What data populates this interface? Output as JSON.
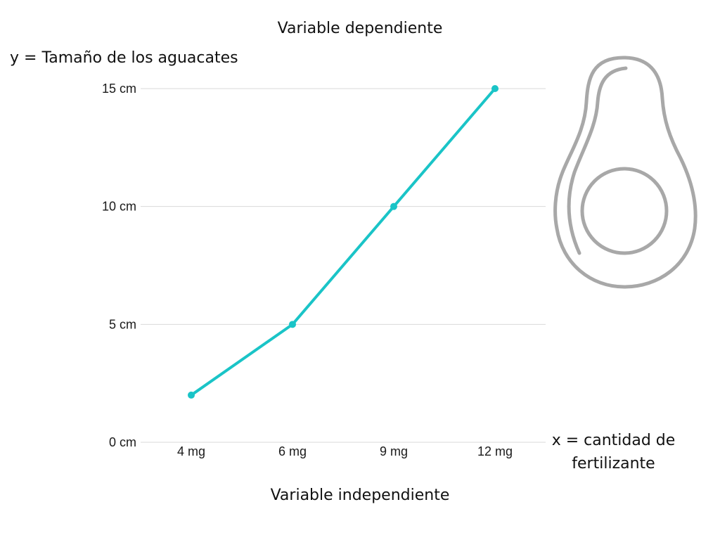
{
  "headings": {
    "dependent": "Variable dependiente",
    "independent": "Variable independiente"
  },
  "chart_data": {
    "type": "line",
    "title": "",
    "ylabel": "y = Tamaño de los aguacates",
    "xlabel": "x = cantidad de fertilizante",
    "categories": [
      "4 mg",
      "6 mg",
      "9 mg",
      "12 mg"
    ],
    "y_ticks": [
      "0 cm",
      "5 cm",
      "10 cm",
      "15 cm"
    ],
    "y_tick_values": [
      0,
      5,
      10,
      15
    ],
    "ylim": [
      0,
      15
    ],
    "grid": true,
    "series": [
      {
        "values": [
          2,
          5,
          10,
          15
        ]
      }
    ]
  },
  "colors": {
    "line": "#1ac4c7",
    "grid": "#d9d9d9",
    "icon": "#a8a8a8"
  },
  "icon": "avocado-icon"
}
